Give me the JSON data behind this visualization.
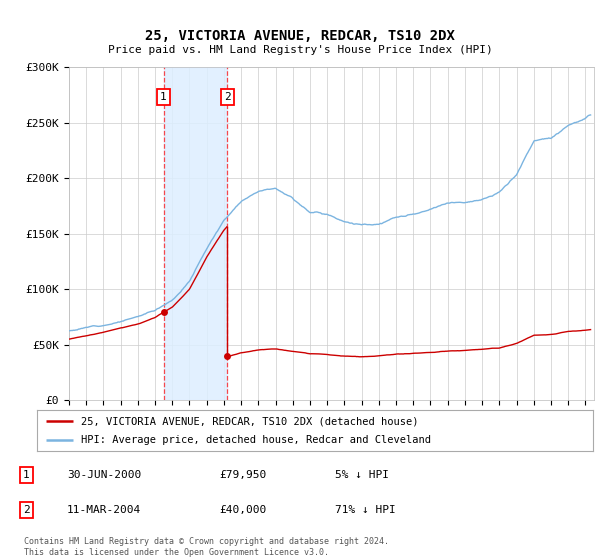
{
  "title": "25, VICTORIA AVENUE, REDCAR, TS10 2DX",
  "subtitle": "Price paid vs. HM Land Registry's House Price Index (HPI)",
  "ylim": [
    0,
    300000
  ],
  "yticks": [
    0,
    50000,
    100000,
    150000,
    200000,
    250000,
    300000
  ],
  "ytick_labels": [
    "£0",
    "£50K",
    "£100K",
    "£150K",
    "£200K",
    "£250K",
    "£300K"
  ],
  "sale1_date": 2000.49,
  "sale1_price": 79950,
  "sale2_date": 2004.19,
  "sale2_price": 40000,
  "hpi_color": "#7bb4e0",
  "price_color": "#cc0000",
  "span_color": "#ddeeff",
  "legend_label1": "25, VICTORIA AVENUE, REDCAR, TS10 2DX (detached house)",
  "legend_label2": "HPI: Average price, detached house, Redcar and Cleveland",
  "table_row1": [
    "1",
    "30-JUN-2000",
    "£79,950",
    "5% ↓ HPI"
  ],
  "table_row2": [
    "2",
    "11-MAR-2004",
    "£40,000",
    "71% ↓ HPI"
  ],
  "footnote1": "Contains HM Land Registry data © Crown copyright and database right 2024.",
  "footnote2": "This data is licensed under the Open Government Licence v3.0.",
  "xmin": 1995,
  "xmax": 2025.5,
  "hpi_keypoints_x": [
    1995,
    1996,
    1997,
    1998,
    1999,
    2000,
    2001,
    2002,
    2003,
    2004,
    2005,
    2006,
    2007,
    2008,
    2009,
    2010,
    2011,
    2012,
    2013,
    2014,
    2015,
    2016,
    2017,
    2018,
    2019,
    2020,
    2021,
    2022,
    2023,
    2024,
    2025.3
  ],
  "hpi_keypoints_y": [
    58000,
    61000,
    64000,
    68000,
    72000,
    78000,
    88000,
    105000,
    135000,
    160000,
    178000,
    188000,
    192000,
    183000,
    172000,
    170000,
    165000,
    162000,
    163000,
    168000,
    170000,
    173000,
    178000,
    180000,
    183000,
    188000,
    205000,
    235000,
    238000,
    250000,
    258000
  ]
}
